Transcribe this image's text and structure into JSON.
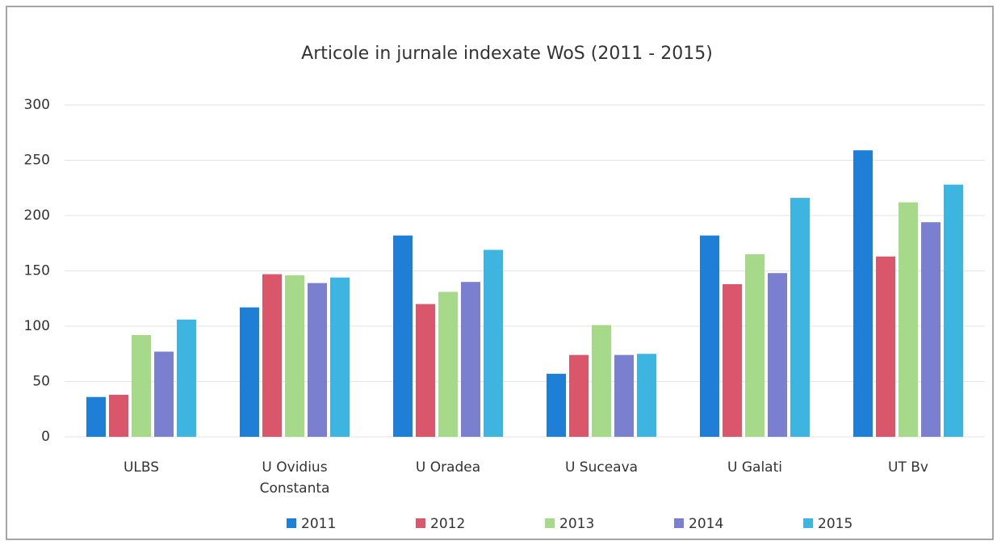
{
  "chart_data": {
    "type": "bar",
    "title": "Articole in jurnale indexate WoS (2011 - 2015)",
    "categories": [
      "ULBS",
      "U Ovidius Constanta",
      "U Oradea",
      "U Suceava",
      "U Galati",
      "UT Bv"
    ],
    "series": [
      {
        "name": "2011",
        "color": "#1f7fd6",
        "values": [
          36,
          117,
          182,
          57,
          182,
          259
        ]
      },
      {
        "name": "2012",
        "color": "#d9566b",
        "values": [
          38,
          147,
          120,
          74,
          138,
          163
        ]
      },
      {
        "name": "2013",
        "color": "#a6d98a",
        "values": [
          92,
          146,
          131,
          101,
          165,
          212
        ]
      },
      {
        "name": "2014",
        "color": "#7a7fd0",
        "values": [
          77,
          139,
          140,
          74,
          148,
          194
        ]
      },
      {
        "name": "2015",
        "color": "#3eb4e0",
        "values": [
          106,
          144,
          169,
          75,
          216,
          228
        ]
      }
    ],
    "ylim": [
      0,
      300
    ],
    "yticks": [
      0,
      50,
      100,
      150,
      200,
      250,
      300
    ],
    "grid": true,
    "legend": "bottom"
  }
}
